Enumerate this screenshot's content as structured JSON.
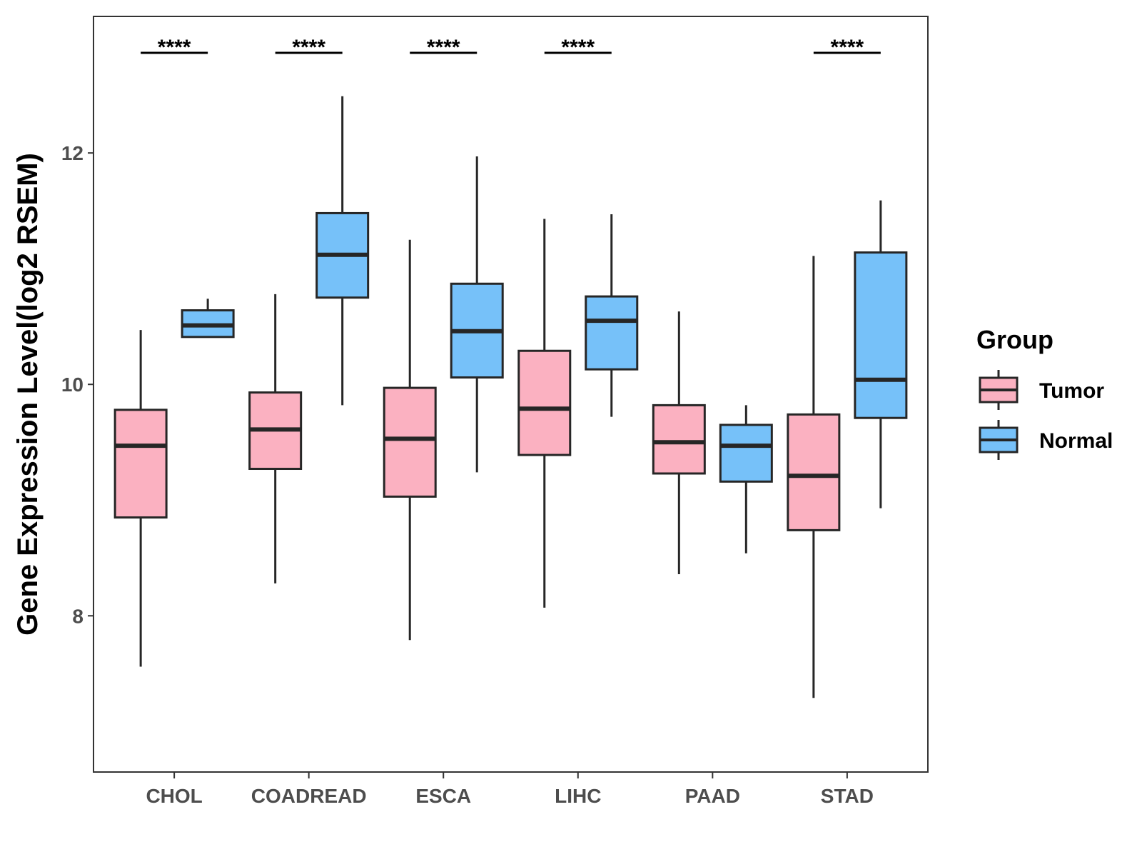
{
  "chart_data": {
    "type": "boxplot",
    "title": "",
    "xlabel": "",
    "ylabel": "Gene Expression Level(log2 RSEM)",
    "ylim": [
      6.65,
      13.18
    ],
    "yticks": [
      8,
      10,
      12
    ],
    "ytick_labels": [
      "8",
      "10",
      "12"
    ],
    "grid": false,
    "categories": [
      "CHOL",
      "COADREAD",
      "ESCA",
      "LIHC",
      "PAAD",
      "STAD"
    ],
    "legend": {
      "title": "Group",
      "position": "right",
      "entries": [
        {
          "name": "Tumor",
          "color": "#FBB1C1"
        },
        {
          "name": "Normal",
          "color": "#76C1F9"
        }
      ]
    },
    "series": [
      {
        "name": "Tumor",
        "color": "#FBB1C1",
        "boxes": [
          {
            "lower_whisker": 7.56,
            "q1": 8.85,
            "median": 9.47,
            "q3": 9.78,
            "upper_whisker": 10.47
          },
          {
            "lower_whisker": 8.28,
            "q1": 9.27,
            "median": 9.61,
            "q3": 9.93,
            "upper_whisker": 10.78
          },
          {
            "lower_whisker": 7.79,
            "q1": 9.03,
            "median": 9.53,
            "q3": 9.97,
            "upper_whisker": 11.25
          },
          {
            "lower_whisker": 8.07,
            "q1": 9.39,
            "median": 9.79,
            "q3": 10.29,
            "upper_whisker": 11.43
          },
          {
            "lower_whisker": 8.36,
            "q1": 9.23,
            "median": 9.5,
            "q3": 9.82,
            "upper_whisker": 10.63
          },
          {
            "lower_whisker": 7.29,
            "q1": 8.74,
            "median": 9.21,
            "q3": 9.74,
            "upper_whisker": 11.11
          }
        ]
      },
      {
        "name": "Normal",
        "color": "#76C1F9",
        "boxes": [
          {
            "lower_whisker": 10.41,
            "q1": 10.41,
            "median": 10.51,
            "q3": 10.64,
            "upper_whisker": 10.74
          },
          {
            "lower_whisker": 9.82,
            "q1": 10.75,
            "median": 11.12,
            "q3": 11.48,
            "upper_whisker": 12.49
          },
          {
            "lower_whisker": 9.24,
            "q1": 10.06,
            "median": 10.46,
            "q3": 10.87,
            "upper_whisker": 11.97
          },
          {
            "lower_whisker": 9.72,
            "q1": 10.13,
            "median": 10.55,
            "q3": 10.76,
            "upper_whisker": 11.47
          },
          {
            "lower_whisker": 8.54,
            "q1": 9.16,
            "median": 9.47,
            "q3": 9.65,
            "upper_whisker": 9.82
          },
          {
            "lower_whisker": 8.93,
            "q1": 9.71,
            "median": 10.04,
            "q3": 11.14,
            "upper_whisker": 11.59
          }
        ]
      }
    ],
    "annotations": [
      {
        "category": "CHOL",
        "text": "****"
      },
      {
        "category": "COADREAD",
        "text": "****"
      },
      {
        "category": "ESCA",
        "text": "****"
      },
      {
        "category": "LIHC",
        "text": "****"
      },
      {
        "category": "STAD",
        "text": "****"
      }
    ]
  }
}
